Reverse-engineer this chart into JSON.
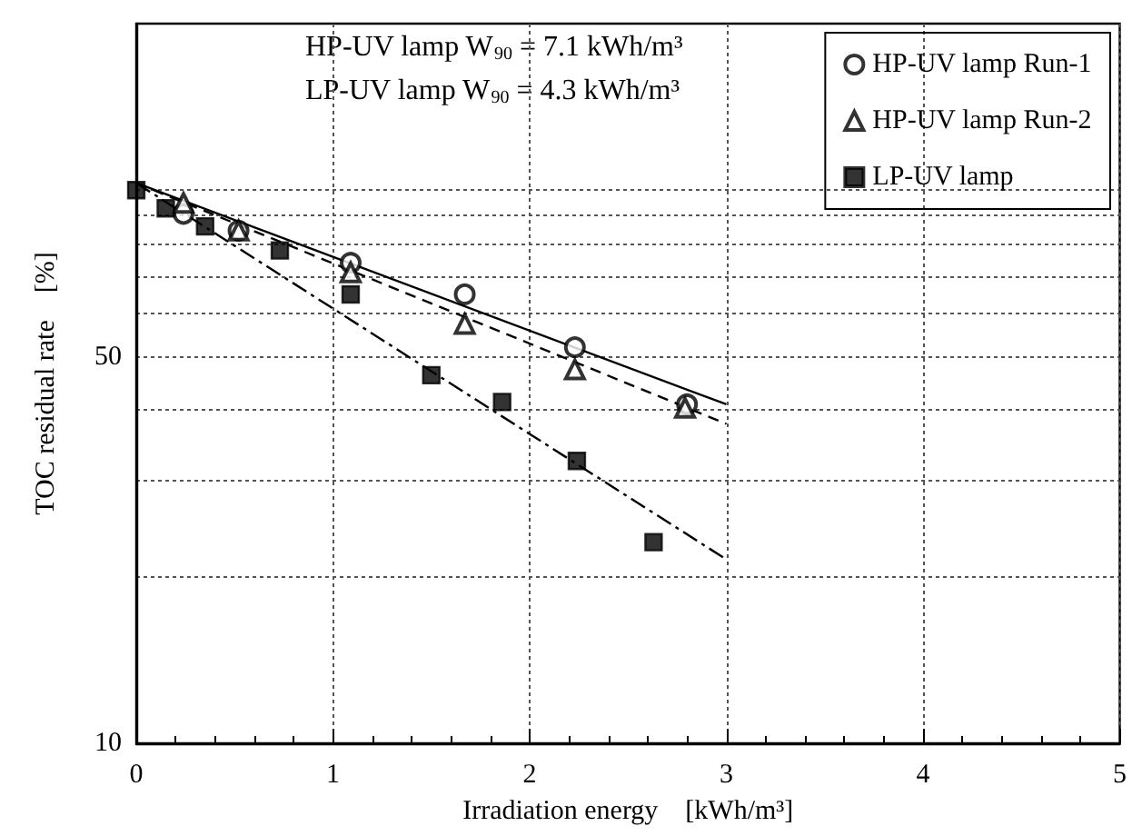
{
  "chart_data": {
    "type": "scatter",
    "xlabel": "Irradiation energy　[kWh/m³]",
    "ylabel": "TOC residual rate　[%]",
    "annotations": [
      "HP-UV lamp W$_{90}$ = 7.1 kWh/m³",
      "LP-UV lamp W$_{90}$ = 4.3 kWh/m³"
    ],
    "series": [
      {
        "name": "HP-UV lamp Run-1",
        "marker": "circle",
        "color": "#000000",
        "x": [
          0.24,
          0.52,
          1.09,
          1.67,
          2.23,
          2.8
        ],
        "values": [
          90.6,
          84.5,
          73.9,
          64.8,
          52,
          41
        ]
      },
      {
        "name": "HP-UV lamp Run-2",
        "marker": "triangle",
        "color": "#000000",
        "x": [
          0.24,
          0.52,
          1.09,
          1.67,
          2.23,
          2.79
        ],
        "values": [
          94.8,
          84.5,
          71,
          57.3,
          47.4,
          40.4
        ]
      },
      {
        "name": "LP-UV lamp",
        "marker": "square",
        "color": "#000000",
        "x": [
          0,
          0.15,
          0.35,
          0.73,
          1.09,
          1.5,
          1.86,
          2.24,
          2.63
        ],
        "values": [
          100,
          92.7,
          86,
          77.8,
          64.8,
          46.3,
          41.4,
          32.4,
          23.1
        ]
      },
      {
        "type": "line",
        "line_style": "solid",
        "marker": "none",
        "color": "#000000",
        "x": [
          0,
          3
        ],
        "values": [
          103,
          41
        ]
      },
      {
        "type": "line",
        "line_style": "dashed",
        "marker": "none",
        "color": "#000000",
        "x": [
          0,
          3
        ],
        "values": [
          103,
          37.8
        ]
      },
      {
        "type": "line",
        "line_style": "dashdot",
        "marker": "none",
        "color": "#000000",
        "x": [
          0,
          3
        ],
        "values": [
          103,
          21.5
        ]
      }
    ],
    "xlim": [
      0,
      5
    ],
    "xticks": [
      0,
      1,
      2,
      3,
      4,
      5
    ],
    "ylim": [
      10,
      200
    ],
    "yticks": [
      10,
      {
        "value": 20,
        "label": null
      },
      {
        "value": 30,
        "label": null
      },
      {
        "value": 40,
        "label": null
      },
      50,
      {
        "value": 60,
        "label": null
      },
      {
        "value": 70,
        "label": null
      },
      {
        "value": 80,
        "label": null
      },
      {
        "value": 90,
        "label": null
      },
      {
        "value": 100,
        "label": null
      }
    ],
    "log": "y",
    "grid": true,
    "legend": "top right"
  }
}
